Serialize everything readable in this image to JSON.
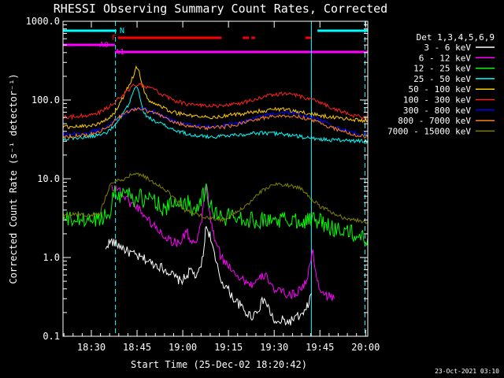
{
  "chart_data": {
    "type": "line",
    "title": "RHESSI Observing Summary Count Rates, Corrected",
    "xlabel": "Start Time (25-Dec-02 18:20:42)",
    "ylabel": "Corrected Count Rate (s⁻¹ detector⁻¹)",
    "yscale": "log",
    "ylim": [
      0.1,
      1000
    ],
    "xlim_minutes": [
      0,
      100
    ],
    "x_ticks": [
      {
        "label": "18:30",
        "minute": 9.3
      },
      {
        "label": "18:45",
        "minute": 24.3
      },
      {
        "label": "19:00",
        "minute": 39.3
      },
      {
        "label": "19:15",
        "minute": 54.3
      },
      {
        "label": "19:30",
        "minute": 69.3
      },
      {
        "label": "19:45",
        "minute": 84.3
      },
      {
        "label": "20:00",
        "minute": 99.3
      }
    ],
    "y_ticks": [
      {
        "label": "1000.0",
        "value": 1000
      },
      {
        "label": "100.0",
        "value": 100
      },
      {
        "label": "10.0",
        "value": 10
      },
      {
        "label": "1.0",
        "value": 1
      },
      {
        "label": "0.1",
        "value": 0.1
      }
    ],
    "legend_title": "Det 1,3,4,5,6,9",
    "legend_position": "right",
    "series": [
      {
        "name": "3 - 6 keV",
        "color": "#ffffff",
        "x": [
          14,
          14.5,
          16,
          17,
          19,
          21,
          23,
          25,
          27,
          29,
          31,
          33,
          35,
          37,
          38.5,
          40,
          42,
          44,
          46,
          46.5,
          47,
          48.5,
          50,
          52,
          54,
          56,
          58,
          60,
          62,
          64,
          66,
          68,
          70,
          72,
          74,
          76,
          78,
          79.5,
          81,
          81.5
        ],
        "y": [
          1.2,
          1.5,
          1.6,
          1.5,
          1.4,
          1.2,
          1.1,
          1,
          0.95,
          0.85,
          0.8,
          0.72,
          0.65,
          0.55,
          0.5,
          0.55,
          0.7,
          0.55,
          1,
          1.8,
          2.5,
          1.8,
          0.9,
          0.5,
          0.4,
          0.3,
          0.25,
          0.2,
          0.18,
          0.22,
          0.3,
          0.2,
          0.14,
          0.16,
          0.15,
          0.17,
          0.18,
          0.2,
          0.3,
          0.35
        ]
      },
      {
        "name": "6 - 12 keV",
        "color": "#ff00ff",
        "x": [
          16,
          18,
          20,
          22,
          24,
          26,
          28,
          30,
          32,
          34,
          36,
          38,
          39.5,
          40.5,
          42,
          44,
          45.5,
          47,
          48.5,
          50,
          52,
          54,
          56,
          58,
          60,
          62,
          64,
          66,
          68,
          70,
          72,
          74,
          76,
          78,
          79,
          80,
          81,
          82,
          83,
          85,
          87,
          88,
          89
        ],
        "y": [
          8,
          7.5,
          6,
          5,
          4.5,
          3.8,
          3,
          2.5,
          2.1,
          1.8,
          1.6,
          1.5,
          1.8,
          2.2,
          1.6,
          1.5,
          3,
          9,
          2.8,
          1.6,
          1,
          0.8,
          0.7,
          0.55,
          0.5,
          0.45,
          0.5,
          0.6,
          0.5,
          0.35,
          0.38,
          0.33,
          0.35,
          0.4,
          0.45,
          0.5,
          0.8,
          1.2,
          0.6,
          0.35,
          0.33,
          0.3,
          0.3
        ]
      },
      {
        "name": "12 - 25 keV",
        "color": "#00ff00",
        "x": [
          0,
          5,
          10,
          15,
          17,
          19,
          21,
          23,
          25,
          27,
          29,
          31,
          33,
          35,
          37,
          39,
          41,
          43,
          45,
          47,
          49,
          51,
          53,
          55,
          57,
          60,
          63,
          66,
          69,
          72,
          75,
          78,
          81,
          84,
          86,
          88,
          90,
          92,
          95,
          98,
          100
        ],
        "y": [
          3,
          3,
          3,
          3.5,
          7,
          6,
          7.5,
          5.5,
          6,
          5,
          6,
          5,
          4,
          4.5,
          5,
          5,
          5,
          4,
          5.5,
          7,
          4,
          3.5,
          3,
          3.5,
          3.5,
          3,
          3,
          3,
          3,
          3,
          3,
          3,
          3,
          3,
          2.5,
          2.4,
          2.3,
          2.2,
          2,
          1.8,
          1.8
        ]
      },
      {
        "name": "25 - 50 keV",
        "color": "#00ffff",
        "x": [
          0,
          4,
          8,
          12,
          15,
          17,
          19,
          21,
          22.5,
          24,
          25,
          26,
          27,
          28,
          30,
          33,
          36,
          40,
          44,
          48,
          52,
          56,
          60,
          64,
          68,
          72,
          76,
          80,
          84,
          88,
          92,
          96,
          100
        ],
        "y": [
          32,
          33,
          34,
          36,
          40,
          48,
          60,
          80,
          110,
          150,
          120,
          80,
          65,
          60,
          55,
          48,
          42,
          38,
          35,
          34,
          35,
          36,
          37,
          38,
          38,
          37,
          35,
          33,
          32,
          31,
          31,
          30,
          30
        ]
      },
      {
        "name": "50 - 100 keV",
        "color": "#ffcc00",
        "x": [
          0,
          4,
          8,
          12,
          15,
          17,
          19,
          21,
          23,
          24,
          25,
          26,
          27,
          28,
          30,
          33,
          36,
          40,
          44,
          48,
          52,
          56,
          60,
          64,
          68,
          70,
          72,
          74,
          76,
          80,
          84,
          88,
          92,
          96,
          100
        ],
        "y": [
          45,
          46,
          47,
          50,
          58,
          70,
          95,
          140,
          200,
          260,
          220,
          160,
          120,
          100,
          90,
          80,
          70,
          65,
          62,
          60,
          62,
          65,
          68,
          72,
          75,
          76,
          76,
          74,
          72,
          68,
          64,
          60,
          58,
          56,
          55
        ]
      },
      {
        "name": "100 - 300 keV",
        "color": "#ff2020",
        "x": [
          0,
          4,
          8,
          12,
          15,
          17,
          19,
          21,
          23,
          25,
          27,
          30,
          33,
          36,
          40,
          44,
          48,
          52,
          56,
          60,
          64,
          68,
          70,
          72,
          74,
          76,
          80,
          84,
          88,
          92,
          96,
          100
        ],
        "y": [
          60,
          62,
          64,
          70,
          80,
          95,
          110,
          130,
          150,
          155,
          150,
          135,
          115,
          100,
          90,
          85,
          84,
          85,
          88,
          95,
          105,
          115,
          118,
          120,
          118,
          115,
          105,
          95,
          80,
          70,
          62,
          60
        ]
      },
      {
        "name": "300 - 800 keV",
        "color": "#0000ff",
        "x": [
          0,
          4,
          8,
          12,
          15,
          17,
          19,
          21,
          23,
          25,
          27,
          30,
          33,
          36,
          40,
          44,
          48,
          52,
          56,
          60,
          64,
          68,
          70,
          72,
          74,
          76,
          80,
          84,
          88,
          92,
          96,
          100
        ],
        "y": [
          36,
          37,
          38,
          42,
          48,
          56,
          63,
          70,
          76,
          78,
          76,
          70,
          62,
          55,
          50,
          47,
          46,
          47,
          50,
          54,
          60,
          66,
          68,
          70,
          69,
          67,
          62,
          56,
          48,
          42,
          38,
          36
        ]
      },
      {
        "name": "800 - 7000 keV",
        "color": "#ff8020",
        "x": [
          0,
          4,
          8,
          12,
          15,
          17,
          19,
          21,
          23,
          25,
          27,
          30,
          33,
          36,
          40,
          44,
          48,
          52,
          56,
          60,
          64,
          68,
          70,
          72,
          74,
          76,
          80,
          84,
          88,
          92,
          96,
          100
        ],
        "y": [
          34,
          35,
          36,
          40,
          46,
          54,
          62,
          70,
          75,
          76,
          74,
          68,
          60,
          53,
          48,
          45,
          44,
          45,
          48,
          52,
          57,
          62,
          63,
          64,
          63,
          62,
          58,
          52,
          45,
          40,
          36,
          34
        ]
      },
      {
        "name": "7000 - 15000 keV",
        "color": "#808000",
        "x": [
          0,
          4,
          8,
          12,
          14,
          16,
          18,
          20,
          22,
          24,
          26,
          28,
          30,
          32,
          34,
          36,
          38,
          40,
          44,
          48,
          52,
          56,
          60,
          64,
          68,
          70,
          72,
          74,
          76,
          78,
          80,
          84,
          88,
          92,
          96,
          100
        ],
        "y": [
          3.5,
          3.5,
          3.5,
          3.5,
          6,
          9,
          9.5,
          10,
          11,
          11.5,
          11,
          10,
          9,
          8,
          7,
          6,
          5,
          4,
          3.5,
          3.2,
          3,
          3.5,
          4.5,
          6.5,
          8,
          8.5,
          8.5,
          8.3,
          8,
          7.5,
          6.5,
          4.5,
          3.8,
          3.2,
          3,
          2.8
        ]
      }
    ],
    "flags": [
      {
        "label": "N",
        "color": "#00ffff",
        "segments": [
          [
            0,
            17.5
          ],
          [
            83.5,
            100
          ]
        ]
      },
      {
        "label": "F",
        "color": "#ff0000",
        "segments": [
          [
            18,
            52
          ],
          [
            59,
            61
          ],
          [
            61.8,
            63
          ],
          [
            79.5,
            81.5
          ]
        ]
      },
      {
        "label": "A0",
        "color": "#ff00ff",
        "segments": [
          [
            0,
            17
          ]
        ]
      },
      {
        "label": "A1",
        "color": "#ff00ff",
        "segments": [
          [
            17,
            100
          ]
        ]
      }
    ],
    "eclipse_lines": [
      {
        "minute": 17.2,
        "color": "#00ffff",
        "style": "dashed"
      },
      {
        "minute": 81.5,
        "color": "#00ffff",
        "style": "solid"
      },
      {
        "minute": 99.1,
        "color": "#00ffff",
        "style": "dashed"
      }
    ]
  },
  "footer": {
    "date_stamp": "23-Oct-2021 03:10"
  }
}
